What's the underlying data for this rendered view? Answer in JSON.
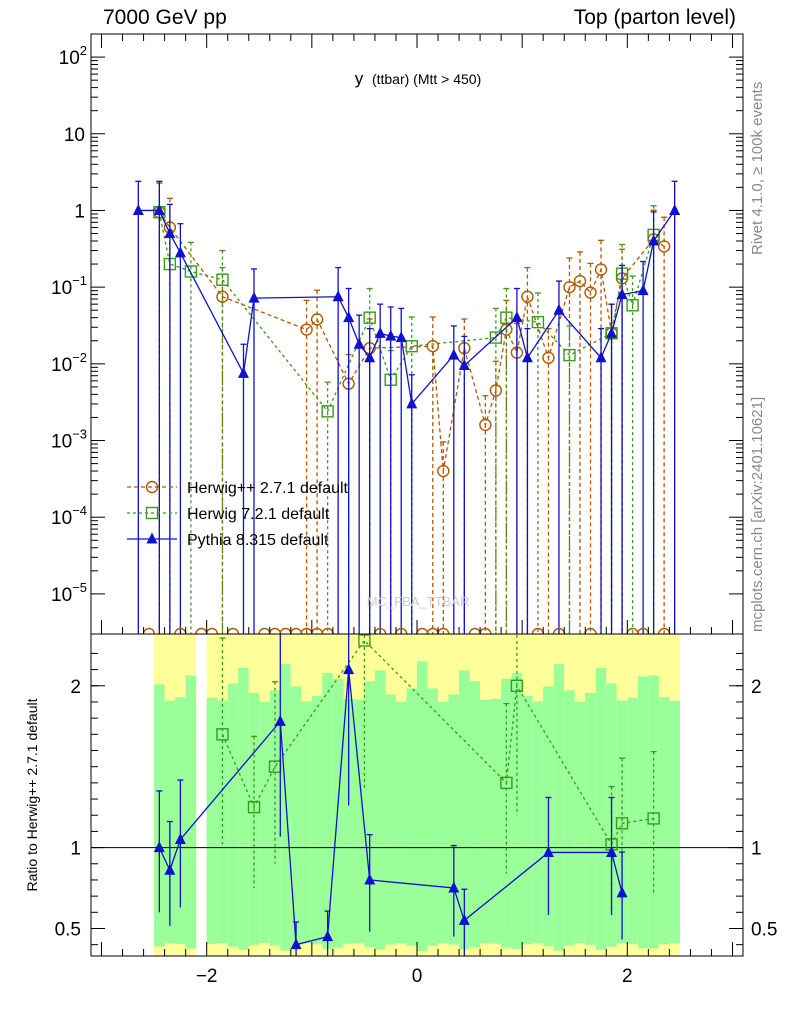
{
  "header": {
    "left": "7000 GeV pp",
    "right": "Top (parton level)"
  },
  "side": {
    "rivet": "Rivet 4.1.0, ≥ 100k events",
    "mcplots": "mcplots.cern.ch [arXiv:2401.10621]"
  },
  "colors": {
    "herwigpp": "#b35900",
    "herwig7": "#3a9a1a",
    "pythia": "#1010d0",
    "band_yellow": "#ffff99",
    "band_green": "#99ff99"
  },
  "chart_data": [
    {
      "type": "line",
      "title": "y (ttbar) (Mtt > 450)",
      "title_main": "y",
      "title_sub": "(ttbar) (Mtt > 450)",
      "watermark": "MC_FBA_TTBAR",
      "xlabel": "",
      "ylabel": "",
      "yscale": "log",
      "xlim": [
        -3.1,
        3.1
      ],
      "ylim": [
        3e-06,
        200
      ],
      "y_ticks": [
        {
          "value": 100,
          "base": "10",
          "exp": "2"
        },
        {
          "value": 10,
          "base": "10",
          "exp": ""
        },
        {
          "value": 1,
          "base": "1",
          "exp": ""
        },
        {
          "value": 0.1,
          "base": "10",
          "exp": "−1"
        },
        {
          "value": 0.01,
          "base": "10",
          "exp": "−2"
        },
        {
          "value": 0.001,
          "base": "10",
          "exp": "−3"
        },
        {
          "value": 0.0001,
          "base": "10",
          "exp": "−4"
        },
        {
          "value": 1e-05,
          "base": "10",
          "exp": "−5"
        }
      ],
      "legend": [
        {
          "label": "Herwig++ 2.7.1 default",
          "marker": "circle"
        },
        {
          "label": "Herwig 7.2.1 default",
          "marker": "square"
        },
        {
          "label": "Pythia 8.315 default",
          "marker": "triangle"
        }
      ],
      "series": [
        {
          "name": "Herwig++ 2.7.1 default",
          "marker": "circle",
          "points": [
            {
              "x": -2.45,
              "y": 0.95
            },
            {
              "x": -2.35,
              "y": 0.6
            },
            {
              "x": -1.85,
              "y": 0.075
            },
            {
              "x": -1.05,
              "y": 0.028
            },
            {
              "x": -0.95,
              "y": 0.038
            },
            {
              "x": -0.65,
              "y": 0.0055
            },
            {
              "x": -0.45,
              "y": 0.016
            },
            {
              "x": 0.15,
              "y": 0.017
            },
            {
              "x": 0.25,
              "y": 0.0004
            },
            {
              "x": 0.45,
              "y": 0.016
            },
            {
              "x": 0.65,
              "y": 0.0016
            },
            {
              "x": 0.75,
              "y": 0.0045
            },
            {
              "x": 0.85,
              "y": 0.028
            },
            {
              "x": 0.95,
              "y": 0.014
            },
            {
              "x": 1.05,
              "y": 0.075
            },
            {
              "x": 1.25,
              "y": 0.012
            },
            {
              "x": 1.45,
              "y": 0.1
            },
            {
              "x": 1.55,
              "y": 0.12
            },
            {
              "x": 1.65,
              "y": 0.085
            },
            {
              "x": 1.75,
              "y": 0.17
            },
            {
              "x": 1.85,
              "y": 0.025
            },
            {
              "x": 1.95,
              "y": 0.13
            },
            {
              "x": 2.25,
              "y": 0.42
            },
            {
              "x": 2.35,
              "y": 0.34
            }
          ]
        },
        {
          "name": "Herwig 7.2.1 default",
          "marker": "square",
          "points": [
            {
              "x": -2.45,
              "y": 0.95
            },
            {
              "x": -2.35,
              "y": 0.2
            },
            {
              "x": -2.15,
              "y": 0.16
            },
            {
              "x": -1.85,
              "y": 0.125
            },
            {
              "x": -0.85,
              "y": 0.0024
            },
            {
              "x": -0.45,
              "y": 0.04
            },
            {
              "x": -0.25,
              "y": 0.0062
            },
            {
              "x": -0.05,
              "y": 0.017
            },
            {
              "x": 0.75,
              "y": 0.022
            },
            {
              "x": 0.85,
              "y": 0.04
            },
            {
              "x": 1.15,
              "y": 0.035
            },
            {
              "x": 1.45,
              "y": 0.013
            },
            {
              "x": 1.85,
              "y": 0.025
            },
            {
              "x": 1.95,
              "y": 0.15
            },
            {
              "x": 2.05,
              "y": 0.058
            },
            {
              "x": 2.25,
              "y": 0.48
            }
          ]
        },
        {
          "name": "Pythia 8.315 default",
          "marker": "triangle",
          "points": [
            {
              "x": -2.65,
              "y": 1.0
            },
            {
              "x": -2.45,
              "y": 1.0
            },
            {
              "x": -2.35,
              "y": 0.5
            },
            {
              "x": -2.25,
              "y": 0.28
            },
            {
              "x": -1.55,
              "y": 0.072
            },
            {
              "x": -1.65,
              "y": 0.0075
            },
            {
              "x": -0.75,
              "y": 0.075
            },
            {
              "x": -0.65,
              "y": 0.04
            },
            {
              "x": -0.55,
              "y": 0.018
            },
            {
              "x": -0.45,
              "y": 0.012
            },
            {
              "x": -0.35,
              "y": 0.025
            },
            {
              "x": -0.25,
              "y": 0.023
            },
            {
              "x": -0.15,
              "y": 0.022
            },
            {
              "x": -0.05,
              "y": 0.003
            },
            {
              "x": 0.35,
              "y": 0.013
            },
            {
              "x": 0.45,
              "y": 0.0095
            },
            {
              "x": 0.95,
              "y": 0.04
            },
            {
              "x": 1.05,
              "y": 0.012
            },
            {
              "x": 1.35,
              "y": 0.05
            },
            {
              "x": 1.75,
              "y": 0.012
            },
            {
              "x": 1.85,
              "y": 0.025
            },
            {
              "x": 1.95,
              "y": 0.08
            },
            {
              "x": 2.15,
              "y": 0.09
            },
            {
              "x": 2.25,
              "y": 0.4
            },
            {
              "x": 2.45,
              "y": 1.0
            }
          ]
        }
      ]
    },
    {
      "type": "line",
      "title": "",
      "xlabel": "",
      "ylabel": "Ratio to Herwig++ 2.7.1 default",
      "xlim": [
        -3.1,
        3.1
      ],
      "ylim": [
        0.33,
        2.32
      ],
      "x_ticks": [
        {
          "value": -2,
          "label": "−2"
        },
        {
          "value": 0,
          "label": "0"
        },
        {
          "value": 2,
          "label": "2"
        }
      ],
      "y_ticks": [
        {
          "value": 2,
          "label": "2"
        },
        {
          "value": 1,
          "label": "1"
        },
        {
          "value": 0.5,
          "label": "0.5"
        }
      ],
      "reference_line": 1,
      "series": [
        {
          "name": "Herwig 7.2.1 default",
          "marker": "square",
          "points": [
            {
              "x": -1.85,
              "y": 1.7
            },
            {
              "x": -1.55,
              "y": 1.25
            },
            {
              "x": -1.35,
              "y": 1.5
            },
            {
              "x": -0.5,
              "y": 2.28
            },
            {
              "x": 0.85,
              "y": 1.4
            },
            {
              "x": 0.95,
              "y": 2.0
            },
            {
              "x": 1.85,
              "y": 1.02
            },
            {
              "x": 1.95,
              "y": 1.15
            },
            {
              "x": 2.25,
              "y": 1.18
            }
          ]
        },
        {
          "name": "Pythia 8.315 default",
          "marker": "triangle",
          "points": [
            {
              "x": -2.45,
              "y": 1.0
            },
            {
              "x": -2.35,
              "y": 0.86
            },
            {
              "x": -2.25,
              "y": 1.05
            },
            {
              "x": -1.3,
              "y": 1.78
            },
            {
              "x": -1.15,
              "y": 0.4
            },
            {
              "x": -0.85,
              "y": 0.45
            },
            {
              "x": -0.65,
              "y": 2.1
            },
            {
              "x": -0.45,
              "y": 0.8
            },
            {
              "x": 0.35,
              "y": 0.75
            },
            {
              "x": 0.45,
              "y": 0.55
            },
            {
              "x": 1.25,
              "y": 0.97
            },
            {
              "x": 1.85,
              "y": 0.97
            },
            {
              "x": 1.95,
              "y": 0.72
            }
          ]
        }
      ]
    }
  ]
}
